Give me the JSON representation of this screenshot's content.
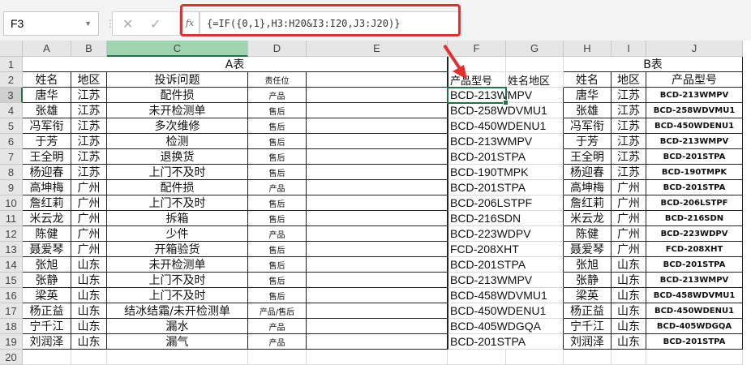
{
  "formula_bar": {
    "name_box": "F3",
    "formula": "{=IF({0,1},H3:H20&I3:I20,J3:J20)}",
    "fx_label": "fx",
    "cancel_icon": "✕",
    "enter_icon": "✓"
  },
  "columns": [
    "A",
    "B",
    "C",
    "D",
    "E",
    "F",
    "G",
    "H",
    "I",
    "J"
  ],
  "rows": [
    "1",
    "2",
    "3",
    "4",
    "5",
    "6",
    "7",
    "8",
    "9",
    "10",
    "11",
    "12",
    "13",
    "14",
    "15",
    "16",
    "17",
    "18",
    "19",
    "20"
  ],
  "selected_cell": "F3",
  "table_a": {
    "title": "A表",
    "headers": [
      "姓名",
      "地区",
      "投诉问题",
      "责任位"
    ],
    "rows": [
      [
        "唐华",
        "江苏",
        "配件损",
        "产品"
      ],
      [
        "张雄",
        "江苏",
        "未开检测单",
        "售后"
      ],
      [
        "冯军衔",
        "江苏",
        "多次维修",
        "售后"
      ],
      [
        "于芳",
        "江苏",
        "检测",
        "售后"
      ],
      [
        "王全明",
        "江苏",
        "退换货",
        "售后"
      ],
      [
        "杨迎春",
        "江苏",
        "上门不及时",
        "售后"
      ],
      [
        "高坤梅",
        "广州",
        "配件损",
        "产品"
      ],
      [
        "詹红莉",
        "广州",
        "上门不及时",
        "售后"
      ],
      [
        "米云龙",
        "广州",
        "拆箱",
        "售后"
      ],
      [
        "陈健",
        "广州",
        "少件",
        "产品"
      ],
      [
        "聂爱琴",
        "广州",
        "开箱验货",
        "售后"
      ],
      [
        "张旭",
        "山东",
        "未开检测单",
        "售后"
      ],
      [
        "张静",
        "山东",
        "上门不及时",
        "售后"
      ],
      [
        "梁英",
        "山东",
        "上门不及时",
        "售后"
      ],
      [
        "杨正益",
        "山东",
        "结冰结霜/未开检测单",
        "产品/售后"
      ],
      [
        "宁千江",
        "山东",
        "漏水",
        "产品"
      ],
      [
        "刘润泽",
        "山东",
        "漏气",
        "产品"
      ]
    ]
  },
  "helper": {
    "headers": [
      "产品型号",
      "姓名地区"
    ],
    "values": [
      "BCD-213WMPV",
      "BCD-258WDVMU1",
      "BCD-450WDENU1",
      "BCD-213WMPV",
      "BCD-201STPA",
      "BCD-190TMPK",
      "BCD-201STPA",
      "BCD-206LSTPF",
      "BCD-216SDN",
      "BCD-223WDPV",
      "FCD-208XHT",
      "BCD-201STPA",
      "BCD-213WMPV",
      "BCD-458WDVMU1",
      "BCD-450WDENU1",
      "BCD-405WDGQA",
      "BCD-201STPA"
    ]
  },
  "table_b": {
    "title": "B表",
    "headers": [
      "姓名",
      "地区",
      "产品型号"
    ],
    "rows": [
      [
        "唐华",
        "江苏",
        "BCD-213WMPV"
      ],
      [
        "张雄",
        "江苏",
        "BCD-258WDVMU1"
      ],
      [
        "冯军衔",
        "江苏",
        "BCD-450WDENU1"
      ],
      [
        "于芳",
        "江苏",
        "BCD-213WMPV"
      ],
      [
        "王全明",
        "江苏",
        "BCD-201STPA"
      ],
      [
        "杨迎春",
        "江苏",
        "BCD-190TMPK"
      ],
      [
        "高坤梅",
        "广州",
        "BCD-201STPA"
      ],
      [
        "詹红莉",
        "广州",
        "BCD-206LSTPF"
      ],
      [
        "米云龙",
        "广州",
        "BCD-216SDN"
      ],
      [
        "陈健",
        "广州",
        "BCD-223WDPV"
      ],
      [
        "聂爱琴",
        "广州",
        "FCD-208XHT"
      ],
      [
        "张旭",
        "山东",
        "BCD-201STPA"
      ],
      [
        "张静",
        "山东",
        "BCD-213WMPV"
      ],
      [
        "梁英",
        "山东",
        "BCD-458WDVMU1"
      ],
      [
        "杨正益",
        "山东",
        "BCD-450WDENU1"
      ],
      [
        "宁千江",
        "山东",
        "BCD-405WDGQA"
      ],
      [
        "刘润泽",
        "山东",
        "BCD-201STPA"
      ]
    ]
  },
  "colors": {
    "accent": "#217346",
    "highlight": "#e03030"
  }
}
